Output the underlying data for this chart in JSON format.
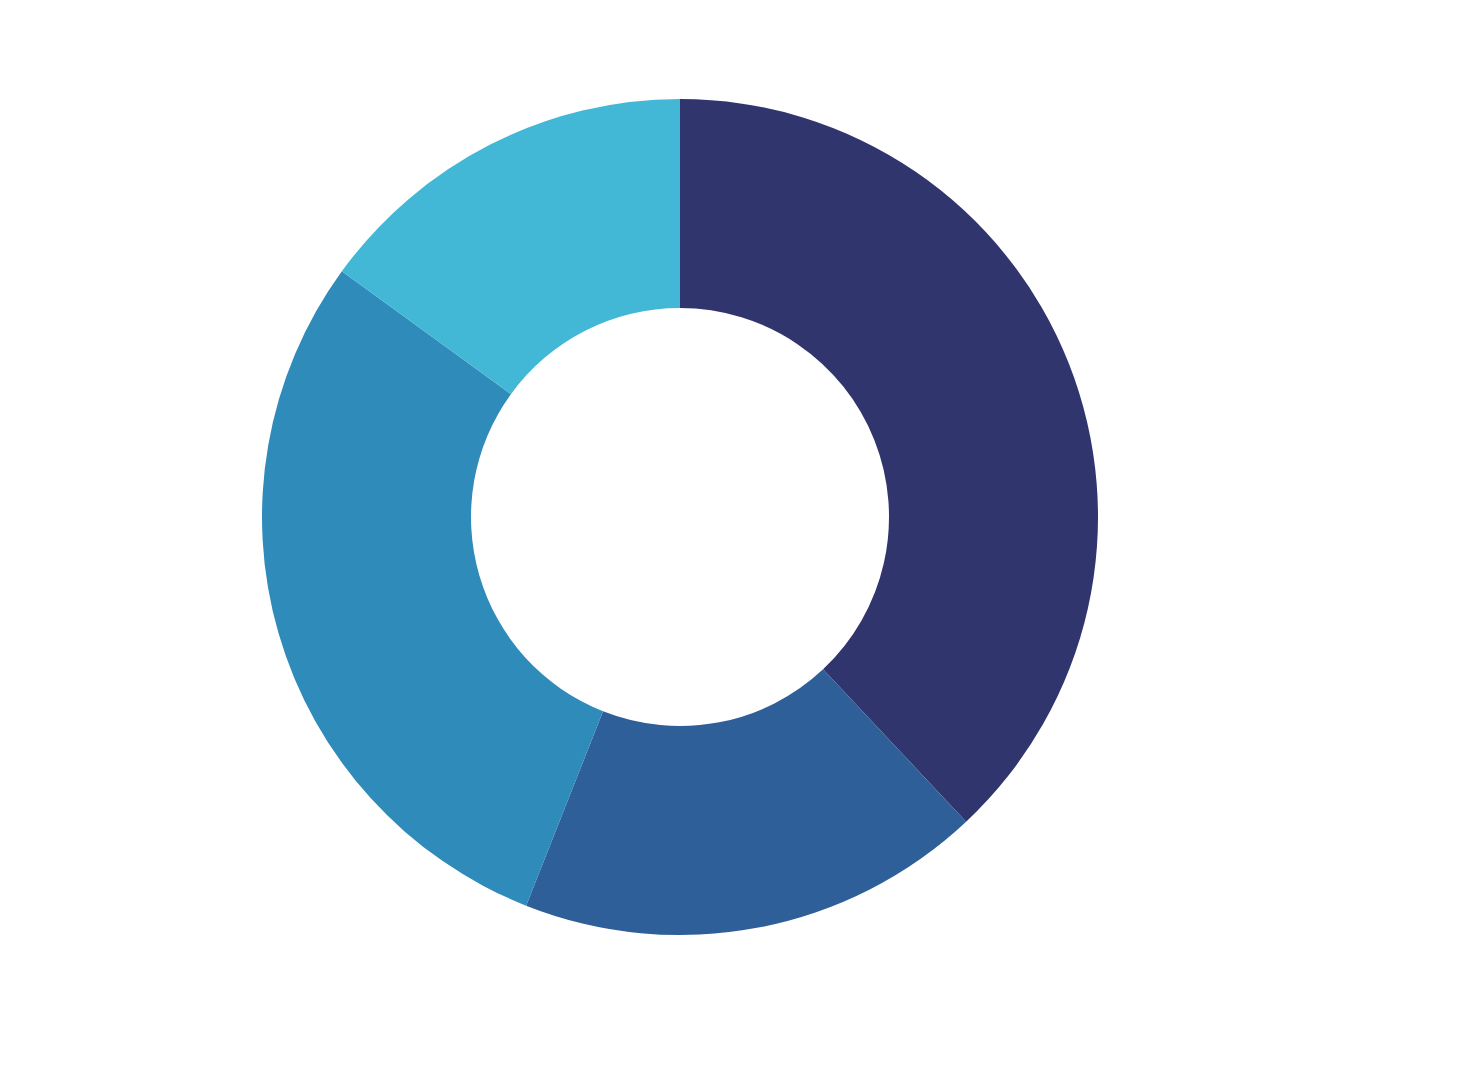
{
  "chart_data": {
    "type": "donut",
    "categories": [
      null,
      null,
      null,
      null
    ],
    "values": [
      38,
      18,
      29,
      15
    ],
    "colors": [
      "#31356e",
      "#2e5f98",
      "#2e8bba",
      "#42b7d6"
    ]
  }
}
